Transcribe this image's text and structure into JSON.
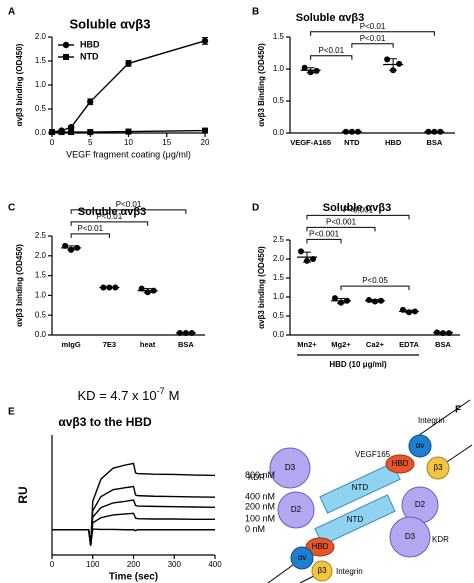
{
  "chart_data": [
    {
      "panel": "A",
      "type": "line",
      "title": "Soluble αvβ3",
      "x_label": "VEGF fragment coating (μg/ml)",
      "y_label": "αvβ3 binding (OD450)",
      "xlim": [
        0,
        20
      ],
      "xticks": [
        0,
        5,
        10,
        15,
        20
      ],
      "ylim": [
        0,
        2
      ],
      "yticks": [
        {
          "value": 0,
          "label": "0.0"
        },
        {
          "value": 0.5,
          "label": "0.5"
        },
        {
          "value": 1,
          "label": "1.0"
        },
        {
          "value": 1.5,
          "label": "1.5"
        },
        {
          "value": 2,
          "label": "2.0"
        }
      ],
      "legend": "upper left",
      "series": [
        {
          "name": "HBD",
          "marker": "circle",
          "color": "#000000",
          "x": [
            0,
            1.25,
            2.5,
            5,
            10,
            20
          ],
          "values": [
            0.02,
            0.05,
            0.12,
            0.65,
            1.45,
            1.92
          ],
          "errors": [
            0.01,
            0.02,
            0.03,
            0.06,
            0.06,
            0.07
          ]
        },
        {
          "name": "NTD",
          "marker": "square",
          "color": "#000000",
          "x": [
            0,
            1.25,
            2.5,
            5,
            10,
            20
          ],
          "values": [
            0.02,
            0.02,
            0.02,
            0.02,
            0.03,
            0.05
          ],
          "errors": [
            0.01,
            0.01,
            0.01,
            0.01,
            0.01,
            0.02
          ]
        }
      ]
    },
    {
      "panel": "B",
      "type": "dot",
      "title": "Soluble αvβ3",
      "y_label": "αvβ3 Binding (OD450)",
      "ylim": [
        0,
        1.5
      ],
      "yticks": [
        {
          "value": 0,
          "label": "0.0"
        },
        {
          "value": 0.5,
          "label": "0.5"
        },
        {
          "value": 1,
          "label": "1.0"
        },
        {
          "value": 1.5,
          "label": "1.5"
        }
      ],
      "categories": [
        "VEGF-A165",
        "NTD",
        "HBD",
        "BSA"
      ],
      "values": [
        [
          1.02,
          0.95,
          0.97
        ],
        [
          0.02,
          0.02,
          0.02
        ],
        [
          1.15,
          0.98,
          1.08
        ],
        [
          0.02,
          0.02,
          0.02
        ]
      ],
      "means": [
        0.98,
        0.02,
        1.07,
        0.02
      ],
      "errors": [
        0.04,
        0.005,
        0.09,
        0.005
      ],
      "comparisons": [
        {
          "pair": [
            "VEGF-A165",
            "NTD"
          ],
          "label": "P<0.01"
        },
        {
          "pair": [
            "NTD",
            "HBD"
          ],
          "label": "P<0.01"
        },
        {
          "pair": [
            "VEGF-A165",
            "BSA"
          ],
          "label": "P<0.01"
        }
      ]
    },
    {
      "panel": "C",
      "type": "dot",
      "title": "Soluble αvβ3",
      "y_label": "αvβ3 binding (OD450)",
      "ylim": [
        0,
        2.5
      ],
      "yticks": [
        {
          "value": 0,
          "label": "0.0"
        },
        {
          "value": 0.5,
          "label": "0.5"
        },
        {
          "value": 1,
          "label": "1.0"
        },
        {
          "value": 1.5,
          "label": "1.5"
        },
        {
          "value": 2,
          "label": "2.0"
        },
        {
          "value": 2.5,
          "label": "2.5"
        }
      ],
      "categories": [
        "mIgG",
        "7E3",
        "heat",
        "BSA"
      ],
      "values": [
        [
          2.25,
          2.15,
          2.2
        ],
        [
          1.2,
          1.2,
          1.2
        ],
        [
          1.17,
          1.08,
          1.12
        ],
        [
          0.05,
          0.05,
          0.05
        ]
      ],
      "means": [
        2.2,
        1.2,
        1.12,
        0.05
      ],
      "errors": [
        0.05,
        0.01,
        0.05,
        0.005
      ],
      "comparisons": [
        {
          "pair": [
            "mIgG",
            "7E3"
          ],
          "label": "P<0.01"
        },
        {
          "pair": [
            "mIgG",
            "heat"
          ],
          "label": "P<0.01"
        },
        {
          "pair": [
            "mIgG",
            "BSA"
          ],
          "label": "P<0.01"
        }
      ]
    },
    {
      "panel": "D",
      "type": "dot",
      "title": "Soluble αvβ3",
      "y_label": "αvβ3 binding (OD450)",
      "ylim": [
        0,
        2.5
      ],
      "yticks": [
        {
          "value": 0,
          "label": "0.0"
        },
        {
          "value": 0.5,
          "label": "0.5"
        },
        {
          "value": 1,
          "label": "1.0"
        },
        {
          "value": 1.5,
          "label": "1.5"
        },
        {
          "value": 2,
          "label": "2.0"
        },
        {
          "value": 2.5,
          "label": "2.5"
        }
      ],
      "categories": [
        "Mn2+",
        "Mg2+",
        "Ca2+",
        "EDTA",
        "BSA"
      ],
      "values": [
        [
          2.2,
          1.95,
          2.0
        ],
        [
          0.97,
          0.85,
          0.9
        ],
        [
          0.92,
          0.88,
          0.9
        ],
        [
          0.66,
          0.6,
          0.62
        ],
        [
          0.07,
          0.05,
          0.05
        ]
      ],
      "means": [
        2.05,
        0.9,
        0.9,
        0.62,
        0.06
      ],
      "errors": [
        0.13,
        0.06,
        0.03,
        0.03,
        0.01
      ],
      "comparisons": [
        {
          "pair": [
            "Mg2+",
            "EDTA"
          ],
          "label": "P<0.05"
        },
        {
          "pair": [
            "Mn2+",
            "Mg2+"
          ],
          "label": "P<0.001"
        },
        {
          "pair": [
            "Mn2+",
            "Ca2+"
          ],
          "label": "P<0.001"
        },
        {
          "pair": [
            "Mn2+",
            "EDTA"
          ],
          "label": "P<0.001"
        }
      ],
      "group_label": {
        "text": "HBD (10 μg/ml)",
        "categories": [
          "Mn2+",
          "Mg2+",
          "Ca2+",
          "EDTA"
        ]
      }
    },
    {
      "panel": "E",
      "type": "line",
      "title": "αvβ3 to the HBD",
      "x_label": "Time (sec)",
      "y_label": "RU",
      "annotation": {
        "text": "KD = 4.7 x 10",
        "exponent": "-7",
        "unit": "M"
      },
      "xlim": [
        0,
        400
      ],
      "xticks": [
        0,
        100,
        200,
        300,
        400
      ],
      "ylim": [
        -80,
        300
      ],
      "legend": "line end",
      "series": [
        {
          "name": "800 nM",
          "color": "#000000",
          "x": [
            0,
            90,
            95,
            100,
            120,
            150,
            180,
            200,
            205,
            210,
            250,
            300,
            350,
            400
          ],
          "values": [
            0,
            0,
            -50,
            90,
            160,
            195,
            205,
            210,
            180,
            178,
            176,
            175,
            173,
            172
          ]
        },
        {
          "name": "400 nM",
          "color": "#000000",
          "x": [
            0,
            90,
            95,
            100,
            120,
            150,
            180,
            200,
            205,
            210,
            250,
            300,
            350,
            400
          ],
          "values": [
            0,
            0,
            -50,
            60,
            105,
            127,
            133,
            137,
            110,
            108,
            106,
            105,
            104,
            103
          ]
        },
        {
          "name": "200 nM",
          "color": "#000000",
          "x": [
            0,
            90,
            95,
            100,
            120,
            150,
            180,
            200,
            205,
            210,
            250,
            300,
            350,
            400
          ],
          "values": [
            0,
            0,
            -50,
            40,
            70,
            85,
            90,
            94,
            77,
            75,
            74,
            73,
            72,
            71
          ]
        },
        {
          "name": "100 nM",
          "color": "#000000",
          "x": [
            0,
            90,
            95,
            100,
            120,
            150,
            180,
            200,
            205,
            210,
            250,
            300,
            350,
            400
          ],
          "values": [
            0,
            0,
            -50,
            22,
            38,
            47,
            50,
            52,
            37,
            35,
            34,
            34,
            33,
            33
          ]
        },
        {
          "name": "0 nM",
          "color": "#000000",
          "x": [
            0,
            90,
            95,
            100,
            120,
            150,
            180,
            200,
            205,
            210,
            250,
            300,
            350,
            400
          ],
          "values": [
            0,
            0,
            -50,
            2,
            1,
            1,
            0,
            0,
            -3,
            0,
            0,
            0,
            0,
            0
          ]
        }
      ]
    }
  ],
  "diagram": {
    "panel": "F",
    "labels": [
      "Integrin",
      "KDR",
      "VEGF165",
      "D3",
      "D2",
      "NTD",
      "HBD",
      "αv",
      "β3",
      "D2",
      "D3",
      "NTD",
      "KDR",
      "HBD",
      "αv",
      "β3",
      "Integrin"
    ]
  }
}
